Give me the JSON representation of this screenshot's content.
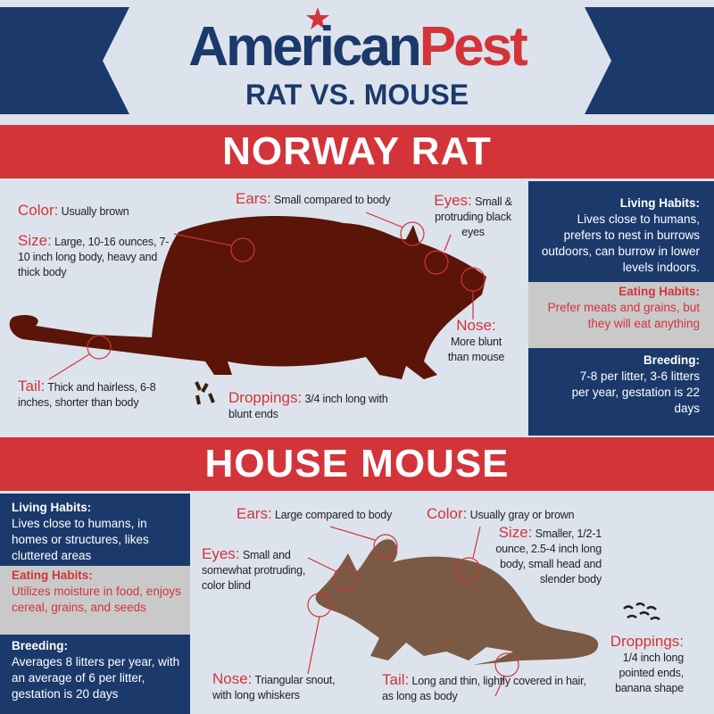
{
  "header": {
    "logo_left": "American",
    "logo_right": "Pest",
    "subtitle": "RAT VS. MOUSE"
  },
  "rat": {
    "title": "NORWAY RAT",
    "labels": {
      "color": {
        "k": "Color:",
        "v": "Usually brown"
      },
      "size": {
        "k": "Size:",
        "v": "Large, 10-16 ounces, 7-10 inch long body, heavy and thick body"
      },
      "ears": {
        "k": "Ears:",
        "v": "Small compared to body"
      },
      "eyes": {
        "k": "Eyes:",
        "v": "Small & protruding black eyes"
      },
      "nose": {
        "k": "Nose:",
        "v": "More blunt than mouse"
      },
      "tail": {
        "k": "Tail:",
        "v": "Thick and hairless, 6-8 inches, shorter than body"
      },
      "droppings": {
        "k": "Droppings:",
        "v": "3/4 inch long with blunt ends"
      }
    },
    "panel": {
      "living_title": "Living Habits:",
      "living": "Lives close to humans, prefers to nest in burrows outdoors, can burrow in lower levels indoors.",
      "eating_title": "Eating Habits:",
      "eating": "Prefer meats and grains, but they will eat anything",
      "breeding_title": "Breeding:",
      "breeding": "7-8 per litter, 3-6 litters per year, gestation is 22 days"
    }
  },
  "mouse": {
    "title": "HOUSE MOUSE",
    "labels": {
      "ears": {
        "k": "Ears:",
        "v": "Large compared to body"
      },
      "color": {
        "k": "Color:",
        "v": "Usually gray or brown"
      },
      "size": {
        "k": "Size:",
        "v": "Smaller, 1/2-1 ounce, 2.5-4 inch long body, small head and slender body"
      },
      "eyes": {
        "k": "Eyes:",
        "v": "Small and somewhat protruding, color blind"
      },
      "nose": {
        "k": "Nose:",
        "v": "Triangular snout, with long whiskers"
      },
      "tail": {
        "k": "Tail:",
        "v": "Long and thin, lightly covered in hair, as long as body"
      },
      "droppings": {
        "k": "Droppings:",
        "v": "1/4 inch long pointed ends, banana shape"
      }
    },
    "panel": {
      "living_title": "Living Habits:",
      "living": "Lives close to humans, in homes or structures, likes cluttered areas",
      "eating_title": "Eating Habits:",
      "eating": "Utilizes moisture in food, enjoys cereal, grains, and seeds",
      "breeding_title": "Breeding:",
      "breeding": "Averages 8 litters per year, with an average of 6 per litter, gestation is 20 days"
    }
  },
  "colors": {
    "navy": "#1b3a6b",
    "red": "#d2343a",
    "rat": "#5a1508",
    "mouse": "#7a5a44",
    "background": "#dde3ec"
  }
}
